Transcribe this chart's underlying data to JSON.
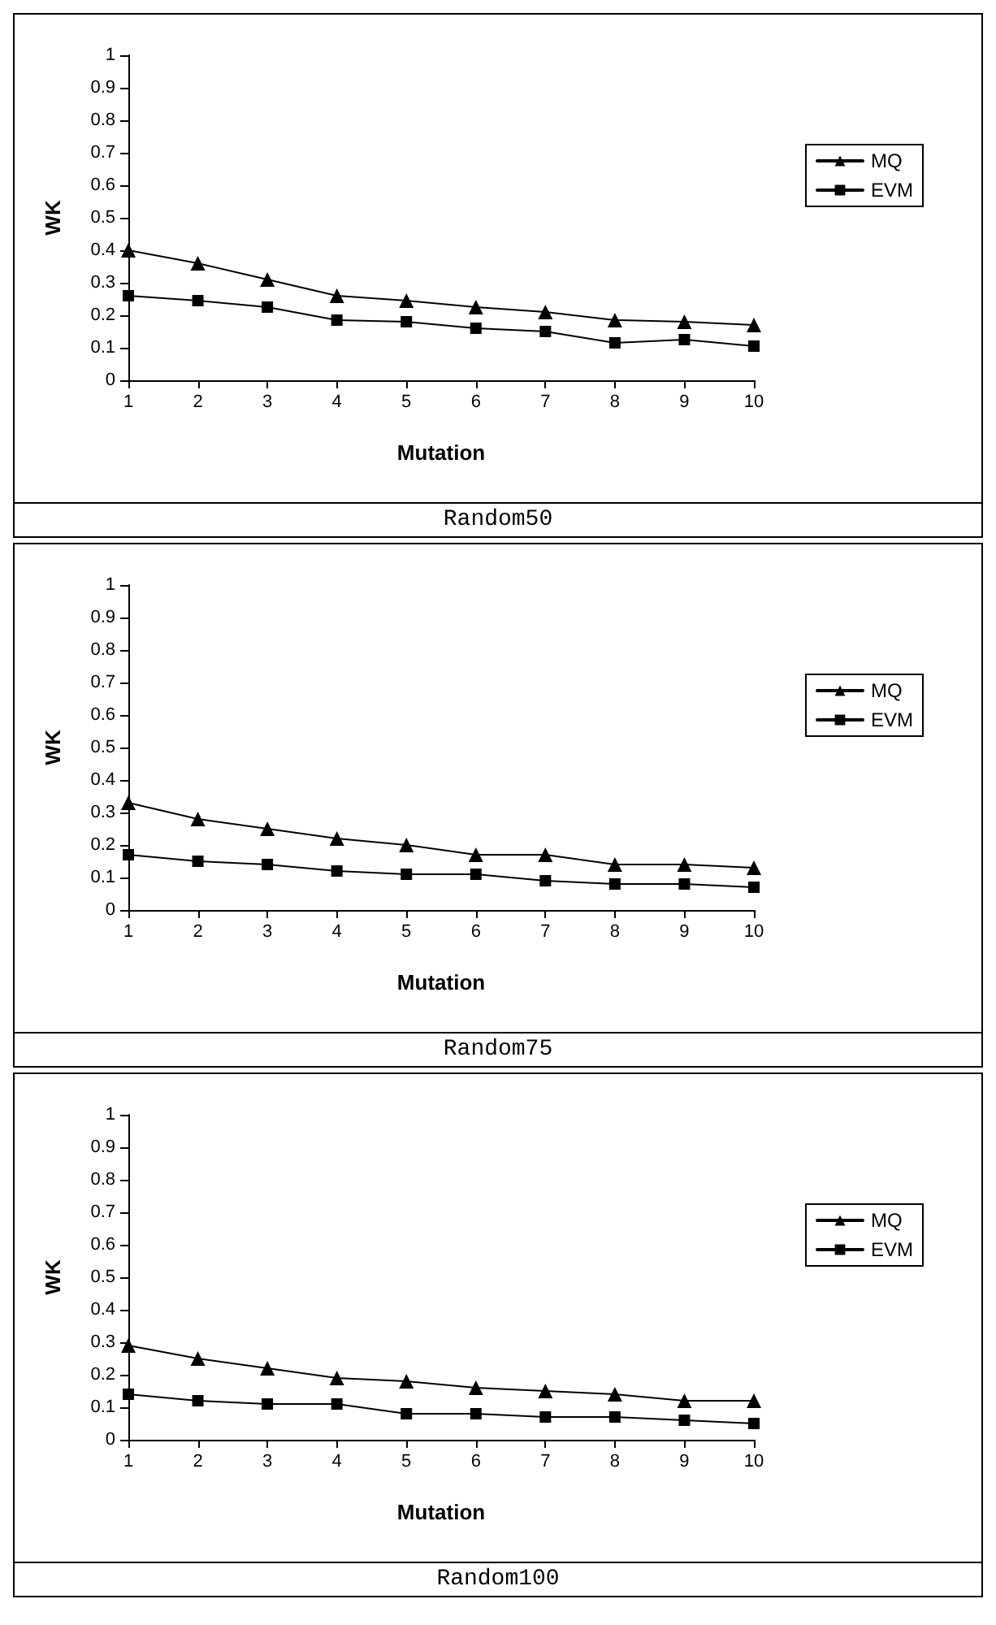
{
  "chart_data": [
    {
      "type": "line",
      "xlabel": "Mutation",
      "ylabel": "WK",
      "annotations": [
        "Random50"
      ],
      "categories": [
        "1",
        "2",
        "3",
        "4",
        "5",
        "6",
        "7",
        "8",
        "9",
        "10"
      ],
      "ylim": [
        0,
        1
      ],
      "yticks": [
        0,
        0.1,
        0.2,
        0.3,
        0.4,
        0.5,
        0.6,
        0.7,
        0.8,
        0.9,
        1
      ],
      "grid": false,
      "legend": "right",
      "series": [
        {
          "name": "MQ",
          "color": "#000000",
          "marker": "triangle",
          "values": [
            0.4,
            0.36,
            0.31,
            0.26,
            0.245,
            0.225,
            0.21,
            0.185,
            0.18,
            0.17
          ]
        },
        {
          "name": "EVM",
          "color": "#000000",
          "marker": "square",
          "values": [
            0.26,
            0.245,
            0.225,
            0.185,
            0.18,
            0.16,
            0.15,
            0.115,
            0.125,
            0.105
          ]
        }
      ]
    },
    {
      "type": "line",
      "xlabel": "Mutation",
      "ylabel": "WK",
      "annotations": [
        "Random75"
      ],
      "categories": [
        "1",
        "2",
        "3",
        "4",
        "5",
        "6",
        "7",
        "8",
        "9",
        "10"
      ],
      "ylim": [
        0,
        1
      ],
      "yticks": [
        0,
        0.1,
        0.2,
        0.3,
        0.4,
        0.5,
        0.6,
        0.7,
        0.8,
        0.9,
        1
      ],
      "grid": false,
      "legend": "right",
      "series": [
        {
          "name": "MQ",
          "color": "#000000",
          "marker": "triangle",
          "values": [
            0.33,
            0.28,
            0.25,
            0.22,
            0.2,
            0.17,
            0.17,
            0.14,
            0.14,
            0.13
          ]
        },
        {
          "name": "EVM",
          "color": "#000000",
          "marker": "square",
          "values": [
            0.17,
            0.15,
            0.14,
            0.12,
            0.11,
            0.11,
            0.09,
            0.08,
            0.08,
            0.07
          ]
        }
      ]
    },
    {
      "type": "line",
      "xlabel": "Mutation",
      "ylabel": "WK",
      "annotations": [
        "Random100"
      ],
      "categories": [
        "1",
        "2",
        "3",
        "4",
        "5",
        "6",
        "7",
        "8",
        "9",
        "10"
      ],
      "ylim": [
        0,
        1
      ],
      "yticks": [
        0,
        0.1,
        0.2,
        0.3,
        0.4,
        0.5,
        0.6,
        0.7,
        0.8,
        0.9,
        1
      ],
      "grid": false,
      "legend": "right",
      "series": [
        {
          "name": "MQ",
          "color": "#000000",
          "marker": "triangle",
          "values": [
            0.29,
            0.25,
            0.22,
            0.19,
            0.18,
            0.16,
            0.15,
            0.14,
            0.12,
            0.12
          ]
        },
        {
          "name": "EVM",
          "color": "#000000",
          "marker": "square",
          "values": [
            0.14,
            0.12,
            0.11,
            0.11,
            0.08,
            0.08,
            0.07,
            0.07,
            0.06,
            0.05
          ]
        }
      ]
    }
  ]
}
